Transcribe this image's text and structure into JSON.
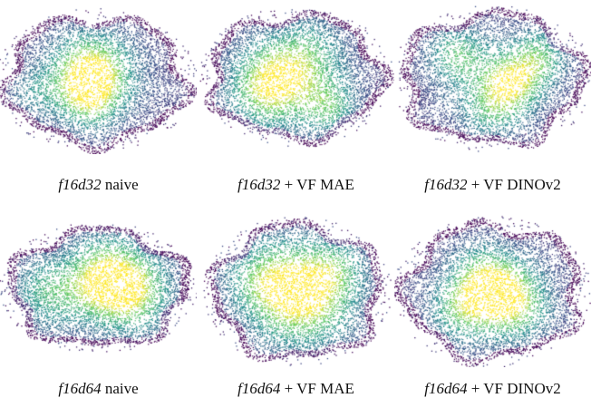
{
  "figure": {
    "panels": [
      {
        "id_text": "f16d32",
        "suffix_text": " naive"
      },
      {
        "id_text": "f16d32",
        "suffix_text": " + VF MAE"
      },
      {
        "id_text": "f16d32",
        "suffix_text": " + VF DINOv2"
      },
      {
        "id_text": "f16d64",
        "suffix_text": " naive"
      },
      {
        "id_text": "f16d64",
        "suffix_text": " + VF MAE"
      },
      {
        "id_text": "f16d64",
        "suffix_text": " + VF DINOv2"
      }
    ],
    "colormap": [
      "#440154",
      "#3b528b",
      "#21918c",
      "#5ec962",
      "#fde725"
    ]
  }
}
